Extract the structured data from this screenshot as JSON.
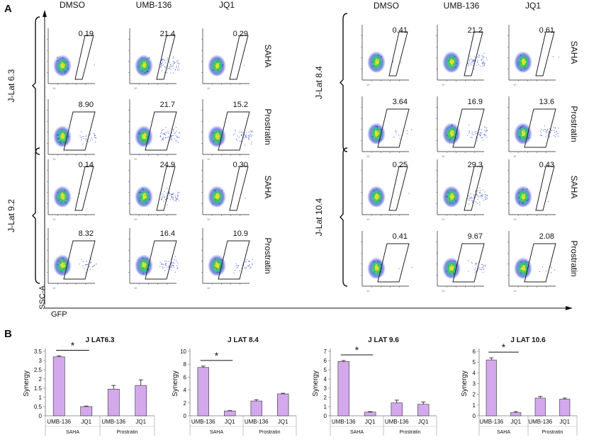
{
  "panel_a": {
    "label": "A",
    "axis_x_label": "GFP",
    "axis_y_label": "SSC-A",
    "columns": [
      "DMSO",
      "UMB-136",
      "JQ1"
    ],
    "plot_tick_label": "10",
    "groups": [
      {
        "name": "J-Lat 6.3",
        "rows": [
          {
            "treatment": "SAHA",
            "values": [
              "0.19",
              "21.4",
              "0.29"
            ]
          },
          {
            "treatment": "Prostratin",
            "values": [
              "8.90",
              "21.7",
              "15.2"
            ]
          }
        ]
      },
      {
        "name": "J-Lat 9.2",
        "rows": [
          {
            "treatment": "SAHA",
            "values": [
              "0.14",
              "24.9",
              "0.30"
            ]
          },
          {
            "treatment": "Prostratin",
            "values": [
              "8.32",
              "16.4",
              "10.9"
            ]
          }
        ]
      },
      {
        "name": "J-Lat 8.4",
        "rows": [
          {
            "treatment": "SAHA",
            "values": [
              "0.41",
              "21.2",
              "0.61"
            ]
          },
          {
            "treatment": "Prostratin",
            "values": [
              "3.64",
              "16.9",
              "13.6"
            ]
          }
        ]
      },
      {
        "name": "J-Lat 10.4",
        "rows": [
          {
            "treatment": "SAHA",
            "values": [
              "0.25",
              "29.3",
              "0.43"
            ]
          },
          {
            "treatment": "Prostratin",
            "values": [
              "0.41",
              "9.67",
              "2.08"
            ]
          }
        ]
      }
    ]
  },
  "panel_b": {
    "label": "B"
  },
  "colors": {
    "bar": "#d3a8ec",
    "bar_stroke": "#333333",
    "text": "#111111",
    "gate": "#222222",
    "dot_low": "#3a4fd8",
    "dot_mid": "#21c25a",
    "dot_high": "#f0e020"
  },
  "chart_data": [
    {
      "type": "bar",
      "title": "J LAT6.3",
      "ylabel": "Synergy",
      "ylim": [
        0,
        3.5
      ],
      "yticks": [
        "0",
        "0.5",
        "1",
        "1.5",
        "2",
        "2.5",
        "3",
        "3.5"
      ],
      "categories": [
        "UMB-136",
        "JQ1",
        "UMB-136",
        "JQ1"
      ],
      "groups": [
        "SAHA",
        "Prostratin"
      ],
      "values": [
        3.2,
        0.5,
        1.45,
        1.65
      ],
      "errors": [
        0.05,
        0.03,
        0.2,
        0.3
      ],
      "significance": {
        "label": "*",
        "between": [
          0,
          1
        ]
      }
    },
    {
      "type": "bar",
      "title": "J LAT 8.4",
      "ylabel": "Synergy",
      "ylim": [
        0,
        10
      ],
      "yticks": [
        "0",
        "2",
        "4",
        "6",
        "8",
        "10"
      ],
      "categories": [
        "UMB-136",
        "JQ1",
        "UMB-136",
        "JQ1"
      ],
      "groups": [
        "SAHA",
        "Prostratin"
      ],
      "values": [
        7.5,
        0.75,
        2.3,
        3.4
      ],
      "errors": [
        0.2,
        0.05,
        0.2,
        0.1
      ],
      "significance": {
        "label": "*",
        "between": [
          0,
          1
        ]
      }
    },
    {
      "type": "bar",
      "title": "J LAT 9.6",
      "ylabel": "Synergy",
      "ylim": [
        0,
        7
      ],
      "yticks": [
        "0",
        "1",
        "2",
        "3",
        "4",
        "5",
        "6",
        "7"
      ],
      "categories": [
        "UMB-136",
        "JQ1",
        "UMB-136",
        "JQ1"
      ],
      "groups": [
        "SAHA",
        "Prostratin"
      ],
      "values": [
        5.9,
        0.4,
        1.4,
        1.25
      ],
      "errors": [
        0.1,
        0.05,
        0.3,
        0.25
      ],
      "significance": {
        "label": "*",
        "between": [
          0,
          1
        ]
      }
    },
    {
      "type": "bar",
      "title": "J LAT 10.6",
      "ylabel": "Synergy",
      "ylim": [
        0,
        6
      ],
      "yticks": [
        "0",
        "1",
        "2",
        "3",
        "4",
        "5",
        "6"
      ],
      "categories": [
        "UMB-136",
        "JQ1",
        "UMB-136",
        "JQ1"
      ],
      "groups": [
        "SAHA",
        "Prostratin"
      ],
      "values": [
        5.2,
        0.3,
        1.65,
        1.55
      ],
      "errors": [
        0.2,
        0.1,
        0.15,
        0.1
      ],
      "significance": {
        "label": "*",
        "between": [
          0,
          1
        ]
      }
    }
  ]
}
